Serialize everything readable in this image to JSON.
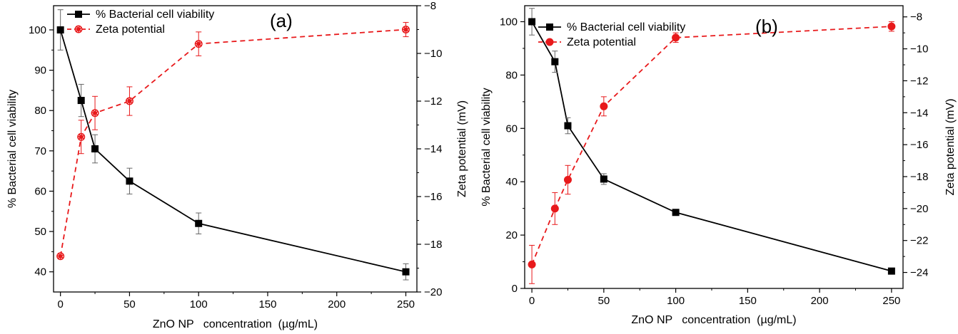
{
  "chart_data": [
    {
      "type": "line",
      "panel_label": "(a)",
      "xlabel": "ZnO NP   concentration  (µg/mL)",
      "ylabel": "% Bacterial cell viability",
      "y2label": "Zeta potential (mV)",
      "xlim": [
        -5,
        258
      ],
      "ylim": [
        35,
        106
      ],
      "y2lim": [
        -20,
        -8
      ],
      "x_ticks": [
        0,
        50,
        100,
        150,
        200,
        250
      ],
      "y_ticks": [
        40,
        50,
        60,
        70,
        80,
        90,
        100
      ],
      "y2_ticks": [
        -20,
        -18,
        -16,
        -14,
        -12,
        -10,
        -8
      ],
      "legend_position": "top-left",
      "series": [
        {
          "name": "% Bacterial cell viability",
          "axis": "left",
          "color": "#000000",
          "line_style": "solid",
          "marker": "square",
          "x": [
            0,
            15,
            25,
            50,
            100,
            250
          ],
          "y": [
            100,
            82.5,
            70.5,
            62.5,
            52,
            40
          ],
          "err": [
            5,
            4,
            3.5,
            3.2,
            2.6,
            2
          ]
        },
        {
          "name": "Zeta potential",
          "axis": "right",
          "color": "#e8191b",
          "line_style": "dashed",
          "marker": "dotted-circle",
          "x": [
            0,
            15,
            25,
            50,
            100,
            250
          ],
          "y": [
            -18.5,
            -13.5,
            -12.5,
            -12,
            -9.6,
            -9
          ],
          "err": [
            0,
            0.7,
            0.7,
            0.6,
            0.5,
            0.3
          ]
        }
      ]
    },
    {
      "type": "line",
      "panel_label": "(b)",
      "xlabel": "ZnO NP   concentration  (µg/mL)",
      "ylabel": "% Bacterial cell viability",
      "y2label": "Zeta potential (mV)",
      "xlim": [
        -5,
        258
      ],
      "ylim": [
        0,
        106
      ],
      "y2lim": [
        -25,
        -7.3
      ],
      "x_ticks": [
        0,
        50,
        100,
        150,
        200,
        250
      ],
      "y_ticks": [
        0,
        20,
        40,
        60,
        80,
        100
      ],
      "y2_ticks": [
        -24,
        -22,
        -20,
        -18,
        -16,
        -14,
        -12,
        -10,
        -8
      ],
      "legend_position": "top-left",
      "series": [
        {
          "name": "% Bacterial cell viability",
          "axis": "left",
          "color": "#000000",
          "line_style": "solid",
          "marker": "square",
          "x": [
            0,
            16,
            25,
            50,
            100,
            250
          ],
          "y": [
            100,
            85,
            61,
            41,
            28.5,
            6.5
          ],
          "err": [
            5,
            4,
            3,
            2,
            1,
            0.5
          ]
        },
        {
          "name": "Zeta potential",
          "axis": "right",
          "color": "#e8191b",
          "line_style": "dashed",
          "marker": "circle",
          "x": [
            0,
            16,
            25,
            50,
            100,
            250
          ],
          "y": [
            -23.5,
            -20,
            -18.2,
            -13.6,
            -9.3,
            -8.6
          ],
          "err": [
            1.2,
            1,
            0.9,
            0.6,
            0.3,
            0.3
          ]
        }
      ]
    }
  ]
}
